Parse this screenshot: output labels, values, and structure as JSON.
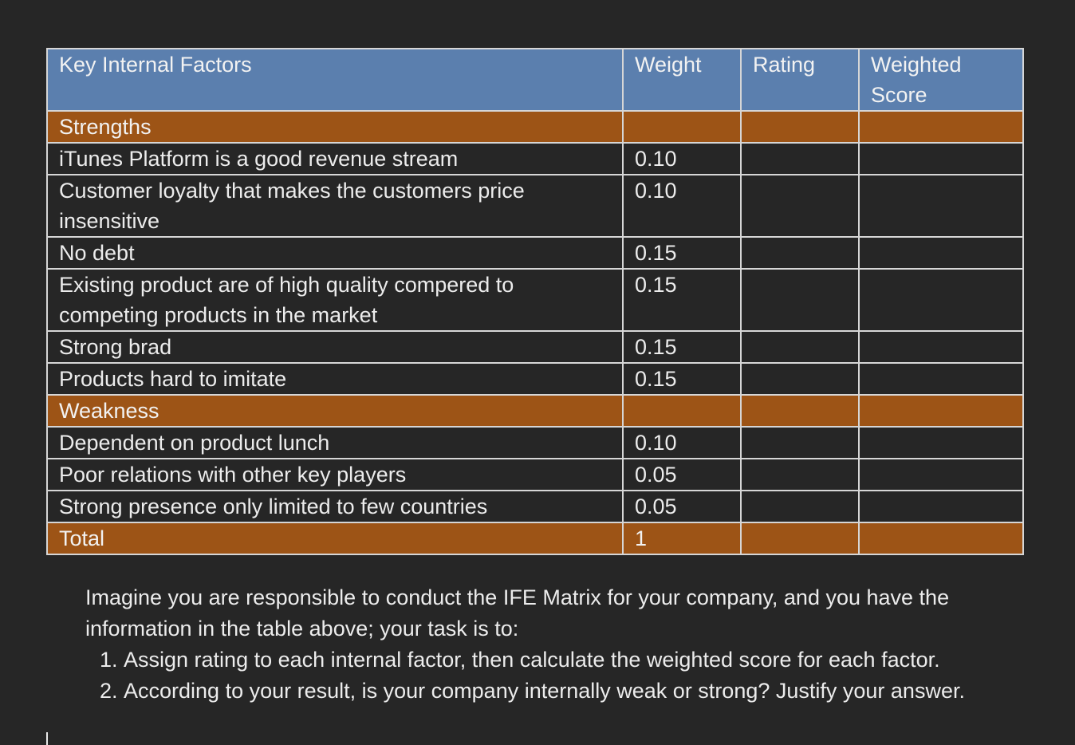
{
  "table": {
    "headers": [
      "Key Internal Factors",
      "Weight",
      "Rating",
      "Weighted Score"
    ],
    "strengths_label": "Strengths",
    "strengths": [
      {
        "factor": "iTunes Platform is a good revenue stream",
        "weight": "0.10"
      },
      {
        "factor": "Customer loyalty that makes the customers price insensitive",
        "weight": "0.10"
      },
      {
        "factor": "No debt",
        "weight": "0.15"
      },
      {
        "factor": "Existing product are of high quality compered to competing products in the market",
        "weight": "0.15"
      },
      {
        "factor": "Strong brad",
        "weight": "0.15"
      },
      {
        "factor": "Products hard to imitate",
        "weight": "0.15"
      }
    ],
    "weakness_label": "Weakness",
    "weaknesses": [
      {
        "factor": "Dependent on product lunch",
        "weight": "0.10"
      },
      {
        "factor": "Poor relations with other key players",
        "weight": "0.05"
      },
      {
        "factor": "Strong presence only limited to few countries",
        "weight": "0.05"
      }
    ],
    "total_label": "Total",
    "total_weight": "1"
  },
  "instructions": {
    "intro": "Imagine you are responsible to conduct the IFE Matrix for your company, and you have the information in the table above; your task is to:",
    "items": [
      "Assign rating to each internal factor, then calculate the weighted score for each factor.",
      "According to your result, is your company internally weak or strong? Justify your answer."
    ]
  },
  "colors": {
    "header_bg": "#5b7fae",
    "section_bg": "#9d5416",
    "page_bg": "#262626"
  }
}
